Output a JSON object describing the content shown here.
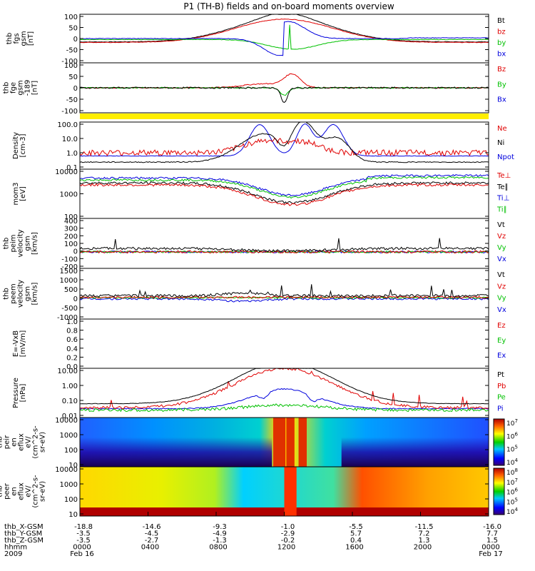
{
  "title": "P1 (TH-B) fields and on-board moments overview",
  "colors": {
    "black": "#000000",
    "red": "#e00000",
    "green": "#00c000",
    "blue": "#0000dd",
    "yellow": "#ffee00"
  },
  "chart_data": [
    {
      "type": "line",
      "id": "p1",
      "ylabel": [
        "thb",
        "fgs",
        "gsm",
        "[nT]"
      ],
      "yticks": [
        "100",
        "50",
        "0",
        "-50",
        "-100"
      ],
      "series": [
        {
          "name": "Bt",
          "color": "#000000"
        },
        {
          "name": "bz",
          "color": "#e00000"
        },
        {
          "name": "by",
          "color": "#00c000"
        },
        {
          "name": "bx",
          "color": "#0000dd"
        }
      ]
    },
    {
      "type": "line",
      "id": "p2",
      "ylabel": [
        "thb",
        "fge",
        "gsm",
        "-189",
        "[nT]"
      ],
      "yticks": [
        "100",
        "50",
        "0",
        "-50",
        "-100"
      ],
      "series": [
        {
          "name": "Bz",
          "color": "#e00000"
        },
        {
          "name": "By",
          "color": "#00c000"
        },
        {
          "name": "Bx",
          "color": "#0000dd"
        }
      ]
    },
    {
      "type": "line",
      "id": "p3",
      "ylabel": [
        "Density",
        "[cm-3]"
      ],
      "scale": "log",
      "yticks": [
        "100.0",
        "10.0",
        "1.0",
        "0.1"
      ],
      "series": [
        {
          "name": "Ne",
          "color": "#e00000"
        },
        {
          "name": "Ni",
          "color": "#000000"
        },
        {
          "name": "Npot",
          "color": "#0000dd"
        }
      ]
    },
    {
      "type": "line",
      "id": "p4",
      "ylabel": [
        "mom3",
        "[eV]"
      ],
      "scale": "log",
      "yticks": [
        "10000",
        "1000",
        "100"
      ],
      "series": [
        {
          "name": "Te⊥",
          "color": "#e00000"
        },
        {
          "name": "Te∥",
          "color": "#000000"
        },
        {
          "name": "Ti⊥",
          "color": "#0000dd"
        },
        {
          "name": "Ti∥",
          "color": "#00c000"
        }
      ]
    },
    {
      "type": "line",
      "id": "p5",
      "ylabel": [
        "thb",
        "peim",
        "velocity",
        "gsm",
        "[km/s]"
      ],
      "yticks": [
        "400",
        "300",
        "200",
        "100",
        "0",
        "-100",
        "-200"
      ],
      "series": [
        {
          "name": "Vt",
          "color": "#000000"
        },
        {
          "name": "Vz",
          "color": "#e00000"
        },
        {
          "name": "Vy",
          "color": "#00c000"
        },
        {
          "name": "Vx",
          "color": "#0000dd"
        }
      ]
    },
    {
      "type": "line",
      "id": "p6",
      "ylabel": [
        "thb",
        "peem",
        "velocity",
        "gsm",
        "[km/s]"
      ],
      "yticks": [
        "1500",
        "1000",
        "500",
        "0",
        "-500",
        "-1000"
      ],
      "series": [
        {
          "name": "Vt",
          "color": "#000000"
        },
        {
          "name": "Vz",
          "color": "#e00000"
        },
        {
          "name": "Vy",
          "color": "#00c000"
        },
        {
          "name": "Vx",
          "color": "#0000dd"
        }
      ]
    },
    {
      "type": "line",
      "id": "p7",
      "ylabel": [
        "E=-VxB",
        "[mV/m]"
      ],
      "yticks": [
        "1.0",
        "0.8",
        "0.6",
        "0.4",
        "0.2",
        "0.0"
      ],
      "series": [
        {
          "name": "Ez",
          "color": "#e00000"
        },
        {
          "name": "Ey",
          "color": "#00c000"
        },
        {
          "name": "Ex",
          "color": "#0000dd"
        }
      ]
    },
    {
      "type": "line",
      "id": "p8",
      "ylabel": [
        "Pressure",
        "[nPa]"
      ],
      "scale": "log",
      "yticks": [
        "10.00",
        "1.00",
        "0.10",
        "0.01"
      ],
      "series": [
        {
          "name": "Pt",
          "color": "#000000"
        },
        {
          "name": "Pb",
          "color": "#e00000"
        },
        {
          "name": "Pe",
          "color": "#00c000"
        },
        {
          "name": "Pi",
          "color": "#0000dd"
        }
      ]
    },
    {
      "type": "heatmap",
      "id": "p9",
      "ylabel": [
        "thb",
        "peir",
        "en",
        "eflux",
        "eV/",
        "(cm^2-s-",
        "sr-eV)"
      ],
      "scale": "log",
      "yticks": [
        "10000",
        "1000",
        "100",
        "10"
      ],
      "colorbar": [
        "10^7",
        "10^6",
        "10^5",
        "10^4"
      ]
    },
    {
      "type": "heatmap",
      "id": "p10",
      "ylabel": [
        "thb",
        "peer",
        "en",
        "eflux",
        "eV/",
        "(cm^2-s-",
        "sr-eV)"
      ],
      "scale": "log",
      "yticks": [
        "10000",
        "1000",
        "100",
        "10"
      ],
      "colorbar": [
        "10^8",
        "10^7",
        "10^6",
        "10^5",
        "10^4"
      ]
    }
  ],
  "xaxis": {
    "row_labels": [
      "thb_X-GSM",
      "thb_Y-GSM",
      "thb_Z-GSM",
      "hhmm",
      "2009"
    ],
    "ticks": [
      {
        "x": "-18.8",
        "y": "-3.5",
        "z": "-3.5",
        "t": "0000",
        "d": "Feb 16"
      },
      {
        "x": "-14.6",
        "y": "-4.5",
        "z": "-2.7",
        "t": "0400",
        "d": ""
      },
      {
        "x": "-9.3",
        "y": "-4.9",
        "z": "-1.3",
        "t": "0800",
        "d": ""
      },
      {
        "x": "-1.0",
        "y": "-2.9",
        "z": "-0.2",
        "t": "1200",
        "d": ""
      },
      {
        "x": "-5.5",
        "y": "5.7",
        "z": "0.4",
        "t": "1600",
        "d": ""
      },
      {
        "x": "-11.5",
        "y": "7.2",
        "z": "1.3",
        "t": "2000",
        "d": ""
      },
      {
        "x": "-16.0",
        "y": "7.7",
        "z": "1.5",
        "t": "0000",
        "d": "Feb 17"
      }
    ]
  }
}
